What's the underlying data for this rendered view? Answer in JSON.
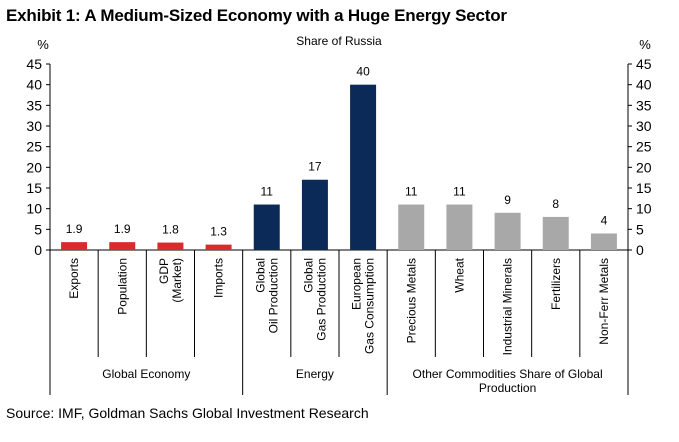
{
  "exhibit_title": "Exhibit 1: A Medium-Sized Economy with a Huge Energy Sector",
  "source": "Source: IMF, Goldman Sachs Global Investment Research",
  "colors": {
    "global_economy": "#d92b2b",
    "energy": "#0b2a57",
    "other_commodities": "#a8a8a8"
  },
  "chart_data": {
    "type": "bar",
    "title": "Share of Russia",
    "ylabel_left": "%",
    "ylabel_right": "%",
    "ylim": [
      0,
      45
    ],
    "yticks": [
      0,
      5,
      10,
      15,
      20,
      25,
      30,
      35,
      40,
      45
    ],
    "grid": false,
    "categories": [
      [
        "Exports"
      ],
      [
        "Population"
      ],
      [
        "GDP",
        "(Market)"
      ],
      [
        "Imports"
      ],
      [
        "Global",
        "Oil Production"
      ],
      [
        "Global",
        "Gas Production"
      ],
      [
        "European",
        "Gas Consumption"
      ],
      [
        "Precious Metals"
      ],
      [
        "Wheat"
      ],
      [
        "Industrial Minerals"
      ],
      [
        "Fertilizers"
      ],
      [
        "Non-Ferr Metals"
      ]
    ],
    "values": [
      1.9,
      1.9,
      1.8,
      1.3,
      11,
      17,
      40,
      11,
      11,
      9,
      8,
      4
    ],
    "data_labels": [
      "1.9",
      "1.9",
      "1.8",
      "1.3",
      "11",
      "17",
      "40",
      "11",
      "11",
      "9",
      "8",
      "4"
    ],
    "bar_groups": [
      0,
      0,
      0,
      0,
      1,
      1,
      1,
      2,
      2,
      2,
      2,
      2
    ],
    "groups": [
      {
        "label": [
          "Global Economy"
        ],
        "count": 4
      },
      {
        "label": [
          "Energy"
        ],
        "count": 3
      },
      {
        "label": [
          "Other Commodities Share of Global",
          "Production"
        ],
        "count": 5
      }
    ]
  }
}
